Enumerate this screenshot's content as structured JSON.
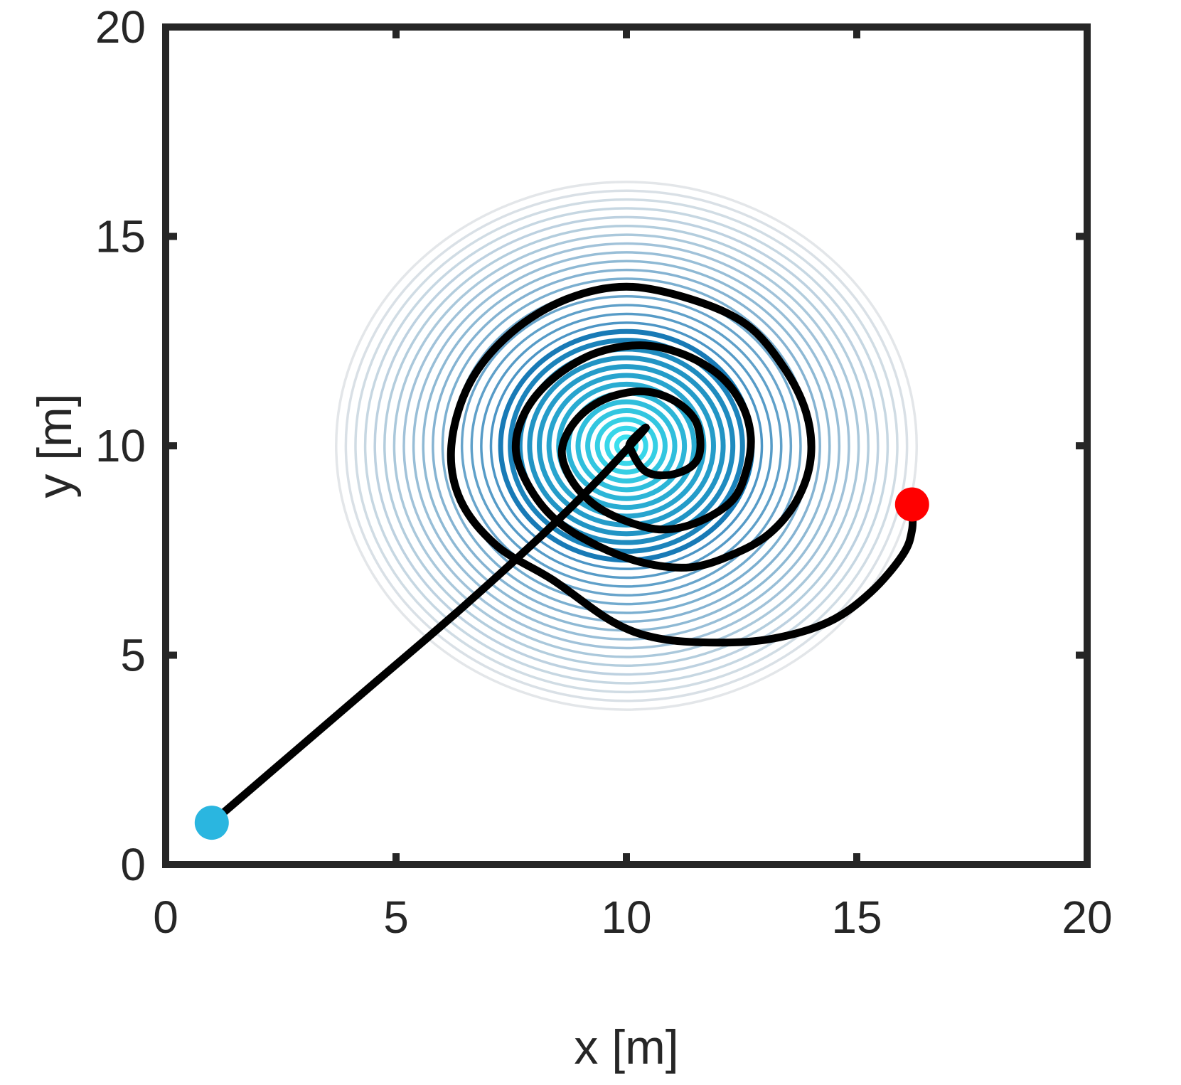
{
  "chart_data": {
    "type": "line",
    "title": "",
    "xlabel": "x [m]",
    "ylabel": "y [m]",
    "xlim": [
      0,
      20
    ],
    "ylim": [
      0,
      20
    ],
    "xticks": [
      0,
      5,
      10,
      15,
      20
    ],
    "yticks": [
      0,
      5,
      10,
      15,
      20
    ],
    "grid": false,
    "contour": {
      "center": [
        10,
        10
      ],
      "outer_radius": 6.3,
      "levels": 30,
      "color_inner": "#33e6f2",
      "color_mid": "#0a6fb0",
      "color_outer": "#d9dde1"
    },
    "trajectory": {
      "color": "#000000",
      "points": [
        [
          1.0,
          1.0
        ],
        [
          2.8,
          2.7
        ],
        [
          4.6,
          4.4
        ],
        [
          6.4,
          6.1
        ],
        [
          8.2,
          7.9
        ],
        [
          9.4,
          9.2
        ],
        [
          10.4,
          10.4
        ],
        [
          10.1,
          10.1
        ],
        [
          10.1,
          9.9
        ],
        [
          10.4,
          9.4
        ],
        [
          10.9,
          9.3
        ],
        [
          11.4,
          9.5
        ],
        [
          11.6,
          9.9
        ],
        [
          11.5,
          10.6
        ],
        [
          11.0,
          11.1
        ],
        [
          10.3,
          11.3
        ],
        [
          9.5,
          11.1
        ],
        [
          8.9,
          10.6
        ],
        [
          8.6,
          9.9
        ],
        [
          8.8,
          9.2
        ],
        [
          9.3,
          8.6
        ],
        [
          10.0,
          8.2
        ],
        [
          10.8,
          8.0
        ],
        [
          11.6,
          8.2
        ],
        [
          12.3,
          8.7
        ],
        [
          12.6,
          9.4
        ],
        [
          12.7,
          10.2
        ],
        [
          12.5,
          11.0
        ],
        [
          12.0,
          11.7
        ],
        [
          11.2,
          12.2
        ],
        [
          10.3,
          12.4
        ],
        [
          9.3,
          12.2
        ],
        [
          8.4,
          11.6
        ],
        [
          7.8,
          10.8
        ],
        [
          7.6,
          9.9
        ],
        [
          7.9,
          9.0
        ],
        [
          8.5,
          8.2
        ],
        [
          9.4,
          7.6
        ],
        [
          10.4,
          7.2
        ],
        [
          11.4,
          7.1
        ],
        [
          12.3,
          7.4
        ],
        [
          13.1,
          7.9
        ],
        [
          13.7,
          8.7
        ],
        [
          14.0,
          9.7
        ],
        [
          13.9,
          10.8
        ],
        [
          13.4,
          11.9
        ],
        [
          12.6,
          12.9
        ],
        [
          11.4,
          13.5
        ],
        [
          10.0,
          13.8
        ],
        [
          8.7,
          13.5
        ],
        [
          7.5,
          12.7
        ],
        [
          6.6,
          11.5
        ],
        [
          6.2,
          10.0
        ],
        [
          6.4,
          8.7
        ],
        [
          7.2,
          7.6
        ],
        [
          8.4,
          6.8
        ],
        [
          9.7,
          5.8
        ],
        [
          10.7,
          5.4
        ],
        [
          12.0,
          5.3
        ],
        [
          13.2,
          5.4
        ],
        [
          14.4,
          5.8
        ],
        [
          15.3,
          6.5
        ],
        [
          16.0,
          7.4
        ],
        [
          16.2,
          8.0
        ],
        [
          16.2,
          8.6
        ]
      ]
    },
    "markers": [
      {
        "name": "start",
        "x": 1.0,
        "y": 1.0,
        "color": "#2ab6e0"
      },
      {
        "name": "end",
        "x": 16.2,
        "y": 8.6,
        "color": "#ff0000"
      }
    ]
  }
}
